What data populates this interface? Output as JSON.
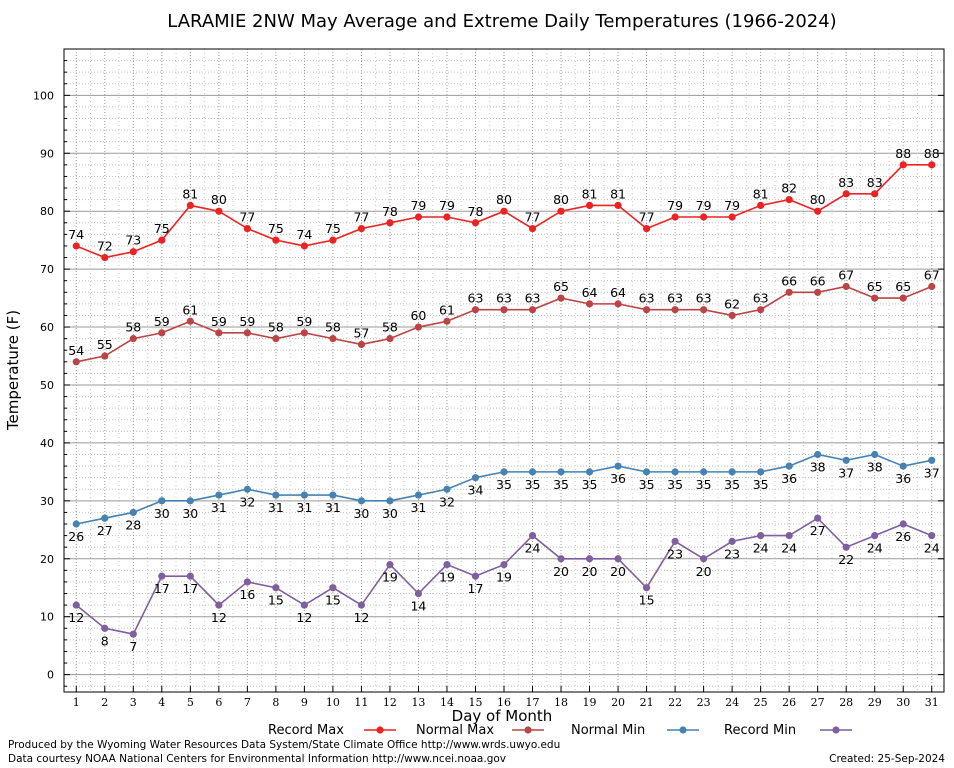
{
  "chart_data": {
    "type": "line",
    "title": "LARAMIE 2NW May Average and Extreme Daily Temperatures (1966-2024)",
    "xlabel": "Day of Month",
    "ylabel": "Temperature (F)",
    "x": [
      1,
      2,
      3,
      4,
      5,
      6,
      7,
      8,
      9,
      10,
      11,
      12,
      13,
      14,
      15,
      16,
      17,
      18,
      19,
      20,
      21,
      22,
      23,
      24,
      25,
      26,
      27,
      28,
      29,
      30,
      31
    ],
    "ylim": [
      -3,
      108
    ],
    "yticks": [
      0,
      10,
      20,
      30,
      40,
      50,
      60,
      70,
      80,
      90,
      100
    ],
    "grid": true,
    "legend_position": "bottom",
    "series": [
      {
        "name": "Record Max",
        "color": "#ee2222",
        "label_pos": "above",
        "values": [
          74,
          72,
          73,
          75,
          81,
          80,
          77,
          75,
          74,
          75,
          77,
          78,
          79,
          79,
          78,
          80,
          77,
          80,
          81,
          81,
          77,
          79,
          79,
          79,
          81,
          82,
          80,
          83,
          83,
          88,
          88
        ]
      },
      {
        "name": "Normal Max",
        "color": "#bb4444",
        "label_pos": "above",
        "values": [
          54,
          55,
          58,
          59,
          61,
          59,
          59,
          58,
          59,
          58,
          57,
          58,
          60,
          61,
          63,
          63,
          63,
          65,
          64,
          64,
          63,
          63,
          63,
          62,
          63,
          66,
          66,
          67,
          65,
          65,
          67
        ]
      },
      {
        "name": "Normal Min",
        "color": "#4682b4",
        "label_pos": "below",
        "values": [
          26,
          27,
          28,
          30,
          30,
          31,
          32,
          31,
          31,
          31,
          30,
          30,
          31,
          32,
          34,
          35,
          35,
          35,
          35,
          36,
          35,
          35,
          35,
          35,
          35,
          36,
          38,
          37,
          38,
          36,
          37
        ]
      },
      {
        "name": "Record Min",
        "color": "#7f5fa0",
        "label_pos": "below",
        "values": [
          12,
          8,
          7,
          17,
          17,
          12,
          16,
          15,
          12,
          15,
          12,
          19,
          14,
          19,
          17,
          19,
          24,
          20,
          20,
          20,
          15,
          23,
          20,
          23,
          24,
          24,
          27,
          22,
          24,
          26,
          24
        ]
      }
    ]
  },
  "footer": {
    "line1": "Produced by the Wyoming Water Resources Data System/State Climate Office http://www.wrds.uwyo.edu",
    "line2": "Data courtesy NOAA National Centers for Environmental Information http://www.ncei.noaa.gov",
    "created": "Created:  25-Sep-2024"
  }
}
